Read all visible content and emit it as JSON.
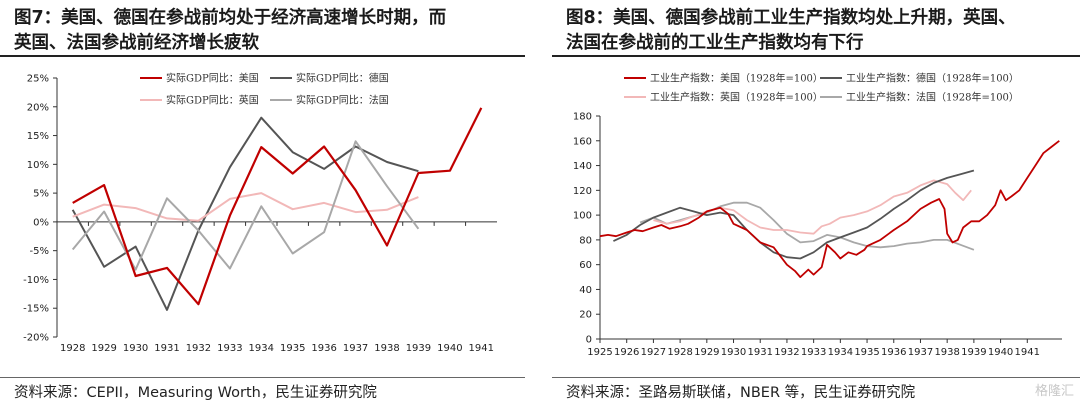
{
  "panels": [
    {
      "title_line1": "图7：美国、德国在参战前均处于经济高速增长时期，而",
      "title_line2": "英国、法国参战前经济增长疲软",
      "source": "资料来源：CEPII，Measuring Worth，民生证券研究院"
    },
    {
      "title_line1": "图8：美国、德国参战前工业生产指数均处上升期，英国、",
      "title_line2": "法国在参战前的工业生产指数均有下行",
      "source": "资料来源：圣路易斯联储，NBER 等，民生证券研究院"
    }
  ],
  "watermark": "格隆汇",
  "chart_data": [
    {
      "type": "line",
      "ylim": [
        -20,
        25
      ],
      "y_ticks": [
        "25%",
        "20%",
        "15%",
        "10%",
        "5%",
        "0%",
        "-5%",
        "-10%",
        "-15%",
        "-20%"
      ],
      "categories": [
        "1928",
        "1929",
        "1930",
        "1931",
        "1932",
        "1933",
        "1934",
        "1935",
        "1936",
        "1937",
        "1938",
        "1939",
        "1940",
        "1941"
      ],
      "grid": false,
      "legend": "top",
      "series": [
        {
          "name": "实际GDP同比：美国",
          "color": "#c00000",
          "width": 2.2,
          "values": [
            3.3,
            6.4,
            -9.4,
            -8.0,
            -14.3,
            1.1,
            13.0,
            8.4,
            13.1,
            5.5,
            -4.1,
            8.5,
            8.9,
            19.8
          ]
        },
        {
          "name": "实际GDP同比：德国",
          "color": "#555555",
          "width": 2.0,
          "values": [
            2.1,
            -7.8,
            -4.3,
            -15.3,
            -1.5,
            9.5,
            18.1,
            12.1,
            9.2,
            13.1,
            10.4,
            8.8,
            null,
            null
          ]
        },
        {
          "name": "实际GDP同比：英国",
          "color": "#f2b8b8",
          "width": 2.0,
          "values": [
            0.9,
            3.0,
            2.4,
            0.6,
            0.2,
            4.0,
            5.0,
            2.2,
            3.3,
            1.7,
            2.1,
            4.3,
            null,
            null
          ]
        },
        {
          "name": "实际GDP同比：法国",
          "color": "#a8a8a8",
          "width": 2.0,
          "values": [
            -4.8,
            1.8,
            -8.3,
            4.1,
            -1.5,
            -8.1,
            2.7,
            -5.5,
            -1.8,
            14.0,
            6.2,
            -1.2,
            null,
            null
          ]
        }
      ]
    },
    {
      "type": "line",
      "ylim": [
        0,
        180
      ],
      "y_ticks": [
        "180",
        "160",
        "140",
        "120",
        "100",
        "80",
        "60",
        "40",
        "20",
        "0"
      ],
      "x_ticks": [
        "1925",
        "1926",
        "1927",
        "1928",
        "1929",
        "1930",
        "1931",
        "1932",
        "1933",
        "1934",
        "1935",
        "1936",
        "1937",
        "1938",
        "1939",
        "1940",
        "1941"
      ],
      "xlim": [
        1925,
        1942.3
      ],
      "grid": false,
      "legend": "top",
      "series": [
        {
          "name": "工业生产指数：美国（1928年=100）",
          "color": "#c00000",
          "width": 1.8,
          "points": [
            [
              1925,
              83
            ],
            [
              1925.3,
              84
            ],
            [
              1925.6,
              83
            ],
            [
              1926,
              86
            ],
            [
              1926.3,
              88
            ],
            [
              1926.6,
              87
            ],
            [
              1927,
              90
            ],
            [
              1927.3,
              92
            ],
            [
              1927.6,
              89
            ],
            [
              1928,
              91
            ],
            [
              1928.3,
              93
            ],
            [
              1928.7,
              98
            ],
            [
              1929,
              103
            ],
            [
              1929.5,
              106
            ],
            [
              1929.8,
              101
            ],
            [
              1930,
              93
            ],
            [
              1930.5,
              88
            ],
            [
              1931,
              78
            ],
            [
              1931.5,
              74
            ],
            [
              1932,
              60
            ],
            [
              1932.3,
              55
            ],
            [
              1932.5,
              50
            ],
            [
              1932.8,
              56
            ],
            [
              1933,
              52
            ],
            [
              1933.3,
              58
            ],
            [
              1933.5,
              76
            ],
            [
              1933.8,
              70
            ],
            [
              1934,
              65
            ],
            [
              1934.3,
              70
            ],
            [
              1934.6,
              68
            ],
            [
              1934.9,
              72
            ],
            [
              1935,
              75
            ],
            [
              1935.5,
              80
            ],
            [
              1936,
              88
            ],
            [
              1936.5,
              95
            ],
            [
              1937,
              105
            ],
            [
              1937.4,
              110
            ],
            [
              1937.7,
              113
            ],
            [
              1937.9,
              105
            ],
            [
              1938,
              85
            ],
            [
              1938.2,
              78
            ],
            [
              1938.4,
              80
            ],
            [
              1938.6,
              90
            ],
            [
              1938.9,
              95
            ],
            [
              1939.2,
              95
            ],
            [
              1939.5,
              100
            ],
            [
              1939.8,
              108
            ],
            [
              1940,
              120
            ],
            [
              1940.2,
              112
            ],
            [
              1940.4,
              115
            ],
            [
              1940.7,
              120
            ],
            [
              1941,
              130
            ],
            [
              1941.3,
              140
            ],
            [
              1941.6,
              150
            ],
            [
              1941.9,
              155
            ],
            [
              1942.2,
              160
            ]
          ]
        },
        {
          "name": "工业生产指数：德国（1928年=100）",
          "color": "#555555",
          "width": 1.8,
          "points": [
            [
              1925.5,
              79
            ],
            [
              1926,
              84
            ],
            [
              1926.5,
              92
            ],
            [
              1927,
              98
            ],
            [
              1927.5,
              102
            ],
            [
              1928,
              106
            ],
            [
              1928.5,
              103
            ],
            [
              1929,
              100
            ],
            [
              1929.5,
              102
            ],
            [
              1930,
              100
            ],
            [
              1930.5,
              88
            ],
            [
              1931,
              78
            ],
            [
              1931.5,
              70
            ],
            [
              1932,
              66
            ],
            [
              1932.5,
              65
            ],
            [
              1933,
              70
            ],
            [
              1933.5,
              78
            ],
            [
              1934,
              82
            ],
            [
              1934.5,
              86
            ],
            [
              1935,
              90
            ],
            [
              1935.5,
              97
            ],
            [
              1936,
              105
            ],
            [
              1936.5,
              112
            ],
            [
              1937,
              120
            ],
            [
              1937.5,
              126
            ],
            [
              1938,
              130
            ],
            [
              1938.5,
              133
            ],
            [
              1939,
              136
            ]
          ]
        },
        {
          "name": "工业生产指数：英国（1928年=100）",
          "color": "#f2b8b8",
          "width": 1.8,
          "points": [
            [
              1927,
              96
            ],
            [
              1927.5,
              93
            ],
            [
              1928,
              95
            ],
            [
              1928.5,
              99
            ],
            [
              1929,
              103
            ],
            [
              1929.5,
              106
            ],
            [
              1930,
              104
            ],
            [
              1930.5,
              96
            ],
            [
              1931,
              90
            ],
            [
              1931.5,
              88
            ],
            [
              1932,
              88
            ],
            [
              1932.5,
              86
            ],
            [
              1933,
              85
            ],
            [
              1933.3,
              91
            ],
            [
              1933.6,
              93
            ],
            [
              1934,
              98
            ],
            [
              1934.5,
              100
            ],
            [
              1935,
              103
            ],
            [
              1935.5,
              108
            ],
            [
              1936,
              115
            ],
            [
              1936.5,
              118
            ],
            [
              1937,
              124
            ],
            [
              1937.5,
              128
            ],
            [
              1938,
              125
            ],
            [
              1938.3,
              118
            ],
            [
              1938.6,
              112
            ],
            [
              1938.9,
              120
            ]
          ]
        },
        {
          "name": "工业生产指数：法国（1928年=100）",
          "color": "#a8a8a8",
          "width": 1.8,
          "points": [
            [
              1926.5,
              94
            ],
            [
              1927,
              98
            ],
            [
              1927.5,
              93
            ],
            [
              1928,
              96
            ],
            [
              1928.5,
              99
            ],
            [
              1929,
              102
            ],
            [
              1929.5,
              107
            ],
            [
              1930,
              110
            ],
            [
              1930.5,
              110
            ],
            [
              1931,
              106
            ],
            [
              1931.5,
              96
            ],
            [
              1932,
              85
            ],
            [
              1932.5,
              78
            ],
            [
              1933,
              79
            ],
            [
              1933.5,
              84
            ],
            [
              1934,
              82
            ],
            [
              1934.5,
              78
            ],
            [
              1935,
              75
            ],
            [
              1935.5,
              74
            ],
            [
              1936,
              75
            ],
            [
              1936.5,
              77
            ],
            [
              1937,
              78
            ],
            [
              1937.5,
              80
            ],
            [
              1938,
              80
            ],
            [
              1938.5,
              76
            ],
            [
              1939,
              72
            ]
          ]
        }
      ]
    }
  ]
}
